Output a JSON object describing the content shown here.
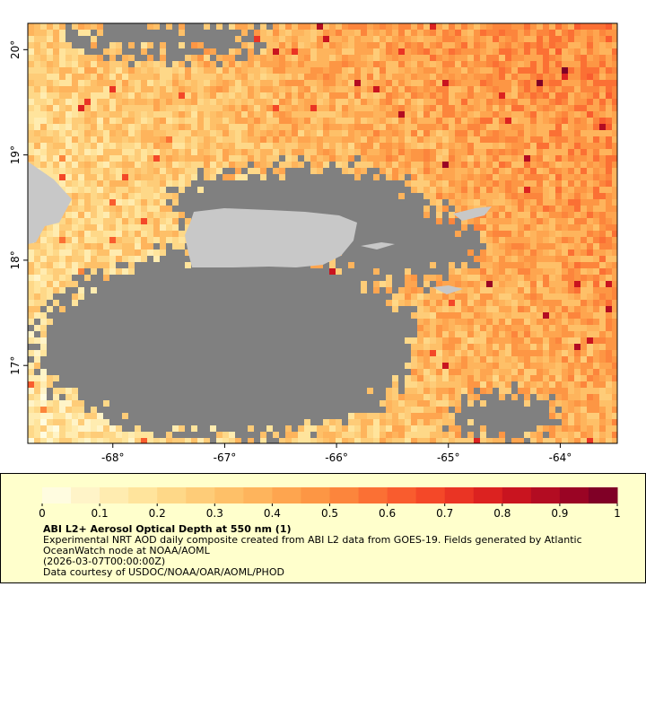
{
  "map": {
    "xlim": [
      -68.76,
      -63.49
    ],
    "ylim": [
      16.26,
      20.25
    ],
    "xticks": [
      {
        "value": -68,
        "label": "-68°"
      },
      {
        "value": -67,
        "label": "-67°"
      },
      {
        "value": -66,
        "label": "-66°"
      },
      {
        "value": -65,
        "label": "-65°"
      },
      {
        "value": -64,
        "label": "-64°"
      }
    ],
    "yticks": [
      {
        "value": 17,
        "label": "17°"
      },
      {
        "value": 18,
        "label": "18°"
      },
      {
        "value": 19,
        "label": "19°"
      },
      {
        "value": 20,
        "label": "20°"
      }
    ],
    "no_data_color": "#808080",
    "land_color": "#c8c8c8"
  },
  "colorbar": {
    "range": [
      0,
      1
    ],
    "ticks": [
      0,
      0.1,
      0.2,
      0.3,
      0.4,
      0.5,
      0.6,
      0.7,
      0.8,
      0.9,
      1
    ],
    "colors": [
      "#fffce0",
      "#fff4c8",
      "#ffecb0",
      "#ffe49c",
      "#fed888",
      "#fecc78",
      "#fec068",
      "#feb45c",
      "#fea54f",
      "#fd9644",
      "#fc853c",
      "#fb7034",
      "#f95c2e",
      "#f44828",
      "#ea3424",
      "#dc2220",
      "#c9141f",
      "#b30c22",
      "#9a0424",
      "#800026"
    ]
  },
  "caption": {
    "title": "ABI L2+ Aerosol Optical Depth at 550 nm (1)",
    "lines": [
      "Experimental NRT AOD daily composite created from ABI L2 data from GOES-19. Fields generated by Atlantic OceanWatch node at NOAA/AOML",
      "(2026-03-07T00:00:00Z)",
      "Data courtesy of USDOC/NOAA/OAR/AOML/PHOD"
    ]
  }
}
